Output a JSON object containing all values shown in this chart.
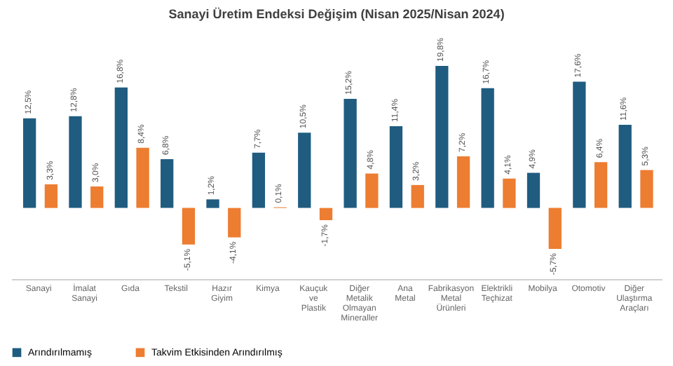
{
  "chart_data": {
    "type": "bar",
    "title": "Sanayi Üretim  Endeksi Değişim (Nisan 2025/Nisan 2024)",
    "categories": [
      "Sanayi",
      "İmalat Sanayi",
      "Gıda",
      "Tekstil",
      "Hazır Giyim",
      "Kimya",
      "Kauçuk ve Plastik",
      "Diğer Metalik Olmayan Mineraller",
      "Ana Metal",
      "Fabrikasyon Metal Ürünleri",
      "Elektrikli Teçhizat",
      "Mobilya",
      "Otomotiv",
      "Diğer Ulaştırma Araçları"
    ],
    "series": [
      {
        "name": "Arındırılmamış",
        "color": "#1f5c80",
        "values": [
          12.5,
          12.8,
          16.8,
          6.8,
          1.2,
          7.7,
          10.5,
          15.2,
          11.4,
          19.8,
          16.7,
          4.9,
          17.6,
          11.6
        ],
        "value_labels": [
          "12,5%",
          "12,8%",
          "16,8%",
          "6,8%",
          "1,2%",
          "7,7%",
          "10,5%",
          "15,2%",
          "11,4%",
          "19,8%",
          "16,7%",
          "4,9%",
          "17,6%",
          "11,6%"
        ]
      },
      {
        "name": "Takvim Etkisinden Arındırılmış",
        "color": "#ed7d31",
        "values": [
          3.3,
          3.0,
          8.4,
          -5.1,
          -4.1,
          0.1,
          -1.7,
          4.8,
          3.2,
          7.2,
          4.1,
          -5.7,
          6.4,
          5.3
        ],
        "value_labels": [
          "3,3%",
          "3,0%",
          "8,4%",
          "-5,1%",
          "-4,1%",
          "0,1%",
          "-1,7%",
          "4,8%",
          "3,2%",
          "7,2%",
          "4,1%",
          "-5,7%",
          "6,4%",
          "5,3%"
        ]
      }
    ],
    "legend": "bottom"
  }
}
